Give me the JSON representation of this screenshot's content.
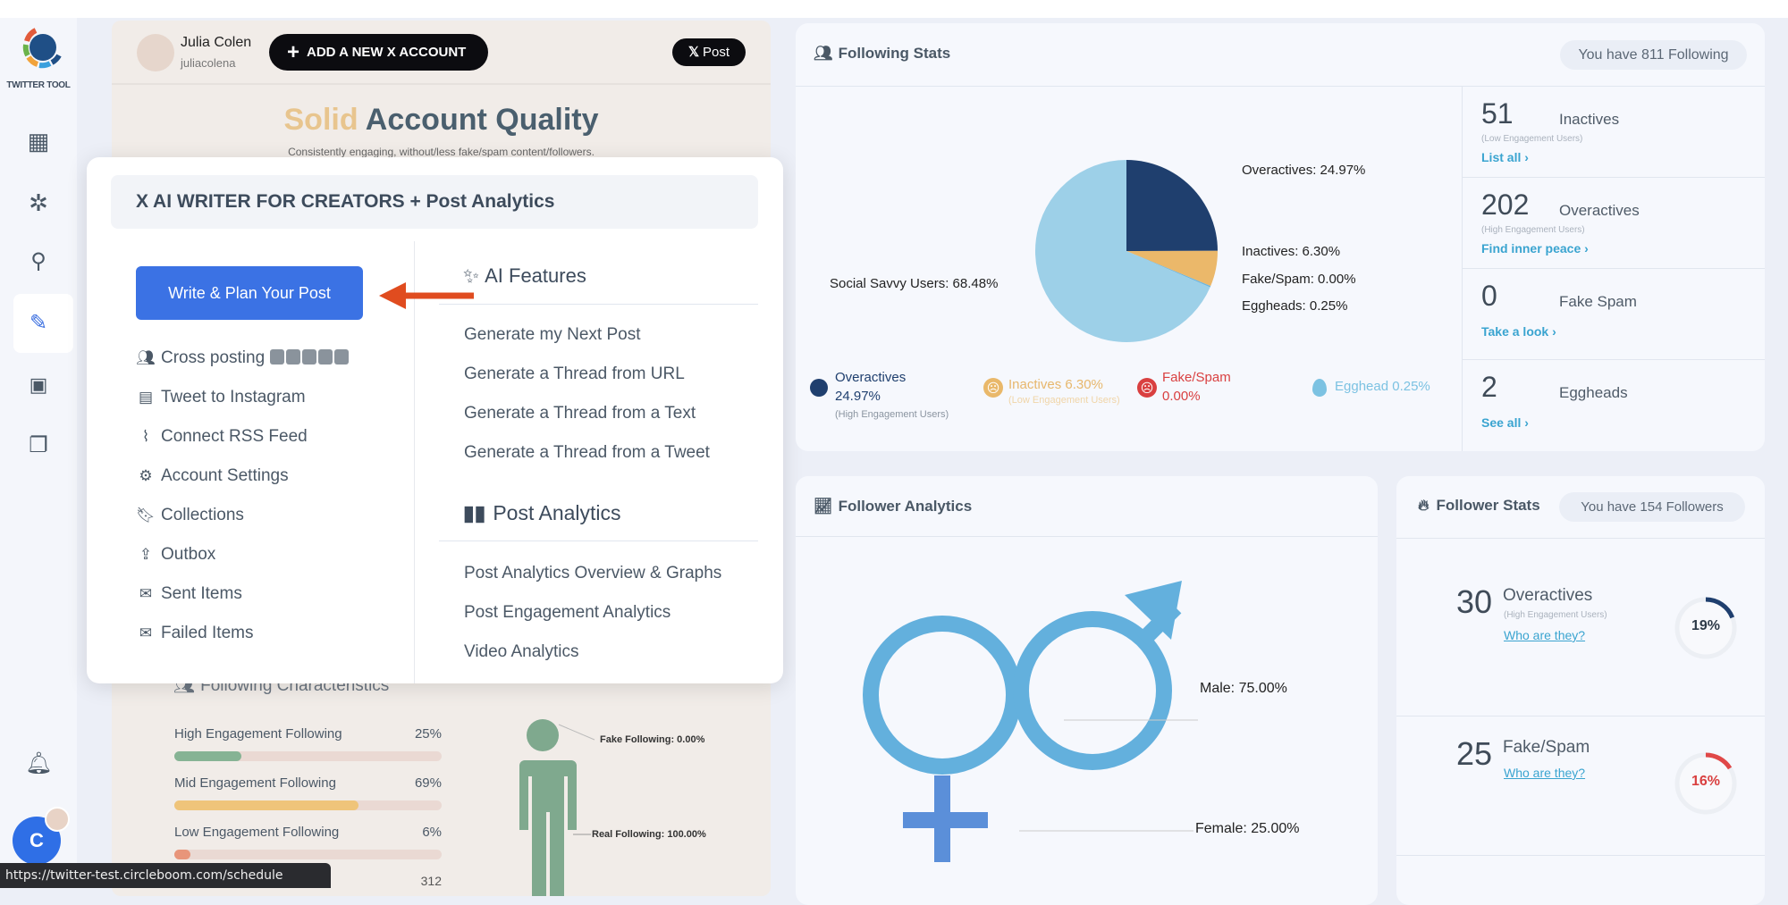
{
  "app": {
    "brand": "TWITTER TOOL",
    "status_url": "https://twitter-test.circleboom.com/schedule",
    "avatar_letter": "C"
  },
  "sidebar": {
    "items": [
      {
        "icon": "dashboard-icon"
      },
      {
        "icon": "network-icon"
      },
      {
        "icon": "search-icon"
      },
      {
        "icon": "write-icon",
        "active": true
      },
      {
        "icon": "analytics-icon"
      },
      {
        "icon": "copy-icon"
      }
    ],
    "bell": "bell-icon"
  },
  "account": {
    "name": "Julia Colen",
    "handle": "juliacolena",
    "add_button": "ADD A NEW X ACCOUNT",
    "post_button": "Post",
    "quality_word": "Solid",
    "quality_title": "Account Quality",
    "quality_subtitle": "Consistently engaging, without/less fake/spam content/followers."
  },
  "following_characteristics": {
    "title": "Following Characteristics",
    "bars": [
      {
        "label": "High Engagement Following",
        "percent": 25,
        "color": "#86b394"
      },
      {
        "label": "Mid Engagement Following",
        "percent": 69,
        "color": "#efc47a"
      },
      {
        "label": "Low Engagement Following",
        "percent": 6,
        "color": "#e8957a"
      }
    ],
    "extra_value": "312",
    "fake_label": "Fake Following: 0.00%",
    "real_label": "Real Following: 100.00%"
  },
  "popup": {
    "title": "X AI WRITER FOR CREATORS + Post Analytics",
    "primary_button": "Write & Plan Your Post",
    "left_items": [
      {
        "icon": "users-icon",
        "label": "Cross posting"
      },
      {
        "icon": "instagram-post-icon",
        "label": "Tweet to Instagram"
      },
      {
        "icon": "rss-icon",
        "label": "Connect RSS Feed"
      },
      {
        "icon": "gear-icon",
        "label": "Account Settings"
      },
      {
        "icon": "bookmark-icon",
        "label": "Collections"
      },
      {
        "icon": "outbox-icon",
        "label": "Outbox"
      },
      {
        "icon": "sent-icon",
        "label": "Sent Items"
      },
      {
        "icon": "failed-icon",
        "label": "Failed Items"
      }
    ],
    "ai_header": "AI Features",
    "ai_items": [
      "Generate my Next Post",
      "Generate a Thread from URL",
      "Generate a Thread from a Text",
      "Generate a Thread from a Tweet"
    ],
    "analytics_header": "Post Analytics",
    "analytics_items": [
      "Post Analytics Overview & Graphs",
      "Post Engagement Analytics",
      "Video Analytics"
    ]
  },
  "following_stats": {
    "title": "Following Stats",
    "pill": "You have 811 Following",
    "pie_labels": [
      "Overactives: 24.97%",
      "Inactives: 6.30%",
      "Fake/Spam: 0.00%",
      "Eggheads: 0.25%",
      "Social Savvy Users: 68.48%"
    ],
    "legend": {
      "over_a": "Overactives",
      "over_b": "24.97%",
      "over_sub": "(High Engagement Users)",
      "inact": "Inactives 6.30%",
      "inact_sub": "(Low Engagement Users)",
      "fake_a": "Fake/Spam",
      "fake_b": "0.00%",
      "egg": "Egghead 0.25%"
    },
    "cells": [
      {
        "num": "51",
        "label": "Inactives",
        "sub": "(Low Engagement Users)",
        "link": "List all ›"
      },
      {
        "num": "202",
        "label": "Overactives",
        "sub": "(High Engagement Users)",
        "link": "Find inner peace ›"
      },
      {
        "num": "0",
        "label": "Fake Spam",
        "sub": "",
        "link": "Take a look ›"
      },
      {
        "num": "2",
        "label": "Eggheads",
        "sub": "",
        "link": "See all ›"
      }
    ]
  },
  "chart_data": {
    "type": "pie",
    "slices": [
      {
        "label": "Overactives",
        "value": 24.97,
        "color": "#1f3f6e"
      },
      {
        "label": "Inactives",
        "value": 6.3,
        "color": "#ebb86a"
      },
      {
        "label": "Fake/Spam",
        "value": 0.0,
        "color": "#e04848"
      },
      {
        "label": "Eggheads",
        "value": 0.25,
        "color": "#6fb6dd"
      },
      {
        "label": "Social Savvy Users",
        "value": 68.48,
        "color": "#9dd0e8"
      }
    ]
  },
  "follower_analytics": {
    "title": "Follower Analytics",
    "male": "Male: 75.00%",
    "female": "Female: 25.00%",
    "male_value": 75,
    "female_value": 25
  },
  "follower_stats": {
    "title": "Follower Stats",
    "pill": "You have 154 Followers",
    "rows": [
      {
        "num": "30",
        "label": "Overactives",
        "sub": "(High Engagement Users)",
        "link": "Who are they?",
        "percent_label": "19%",
        "percent": 19,
        "color": "#1f3f6e"
      },
      {
        "num": "25",
        "label": "Fake/Spam",
        "sub": "",
        "link": "Who are they?",
        "percent_label": "16%",
        "percent": 16,
        "color": "#e04848"
      }
    ]
  }
}
